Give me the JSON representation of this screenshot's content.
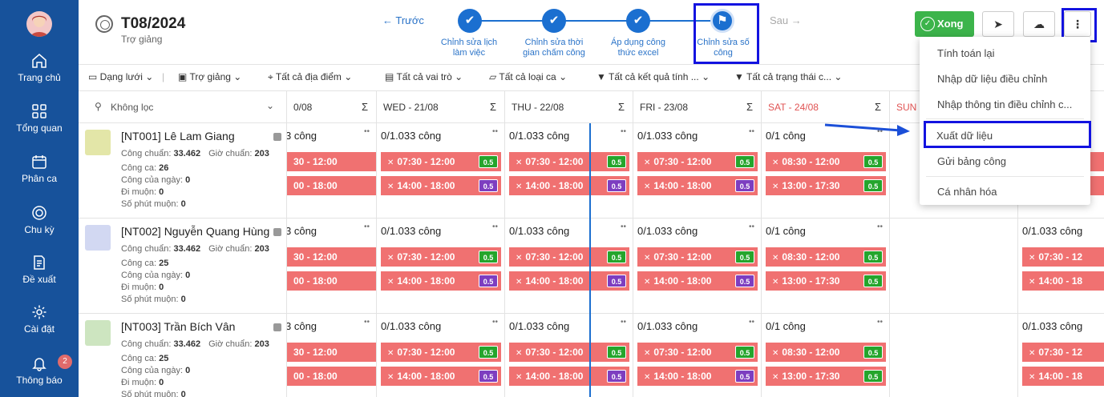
{
  "sidebar": {
    "items": [
      {
        "label": "Trang chủ",
        "icon": "home-icon"
      },
      {
        "label": "Tổng quan",
        "icon": "grid-icon"
      },
      {
        "label": "Phân ca",
        "icon": "calendar-icon"
      },
      {
        "label": "Chu kỳ",
        "icon": "cycle-icon"
      },
      {
        "label": "Đề xuất",
        "icon": "document-icon"
      },
      {
        "label": "Cài đặt",
        "icon": "gear-icon"
      },
      {
        "label": "Thông báo",
        "icon": "bell-icon"
      }
    ],
    "notification_count": "2"
  },
  "header": {
    "title": "T08/2024",
    "subtitle": "Trợ giảng",
    "prev_label": "← Trước",
    "next_label": "Sau →",
    "done_label": "Xong"
  },
  "steps": [
    {
      "label": "Chỉnh sửa lịch làm việc"
    },
    {
      "label": "Chỉnh sửa thời gian chấm công"
    },
    {
      "label": "Áp dụng công thức excel"
    },
    {
      "label": "Chỉnh sửa số công"
    }
  ],
  "toolbar": {
    "items": [
      "Dạng lưới",
      "Trợ giảng",
      "Tất cả địa điểm",
      "Tất cả vai trò",
      "Tất cả loại ca",
      "Tất cả kết quả tính ...",
      "Tất cả trạng thái c..."
    ]
  },
  "filter": {
    "label": "Không lọc"
  },
  "days": [
    {
      "label": "0/08"
    },
    {
      "label": "WED - 21/08"
    },
    {
      "label": "THU - 22/08"
    },
    {
      "label": "FRI - 23/08"
    },
    {
      "label": "SAT - 24/08"
    },
    {
      "label": "SUN -"
    }
  ],
  "sigma": "Σ",
  "employees": [
    {
      "name": "[NT001] Lê Lam Giang",
      "cong_chuan": "33.462",
      "gio_chuan": "203",
      "cong_ca": "26",
      "cong_cua_ngay": "0",
      "di_muon": "0",
      "so_phut_muon": "0"
    },
    {
      "name": "[NT002] Nguyễn Quang Hùng",
      "cong_chuan": "33.462",
      "gio_chuan": "203",
      "cong_ca": "25",
      "cong_cua_ngay": "0",
      "di_muon": "0",
      "so_phut_muon": "0"
    },
    {
      "name": "[NT003] Trần Bích Vân",
      "cong_chuan": "33.462",
      "gio_chuan": "203",
      "cong_ca": "25",
      "cong_cua_ngay": "0",
      "di_muon": "0",
      "so_phut_muon": "0"
    }
  ],
  "stat_labels": {
    "cong_chuan": "Công chuẩn:",
    "gio_chuan": "Giờ chuẩn:",
    "cong_ca": "Công ca:",
    "cong_cua_ngay": "Công của ngày:",
    "di_muon": "Đi muộn:",
    "so_phut_muon": "Số phút muộn:"
  },
  "cells": {
    "partial": {
      "label": "3 công",
      "shift1": "30 - 12:00",
      "shift2": "00 - 18:00"
    },
    "weekday": {
      "label": "0/1.033 công",
      "shift1": "07:30 - 12:00",
      "shift2": "14:00 - 18:00"
    },
    "saturday": {
      "label": "0/1 công",
      "shift1": "08:30 - 12:00",
      "shift2": "13:00 - 17:30"
    },
    "next": {
      "label": "0/1.033 công",
      "shift1": "07:30 - 12",
      "shift2": "14:00 - 18"
    },
    "tag": "0.5"
  },
  "menu": {
    "items": [
      "Tính toán lại",
      "Nhập dữ liệu điều chỉnh",
      "Nhập thông tin điều chỉnh c...",
      "Xuất dữ liệu",
      "Gửi bảng công",
      "Cá nhân hóa"
    ]
  },
  "colors": {
    "sidebar": "#17529b",
    "accent": "#1b6fd0",
    "shift": "#f07171",
    "done": "#3cb44b",
    "highlight": "#1313e0",
    "saturday": "#e05353"
  }
}
